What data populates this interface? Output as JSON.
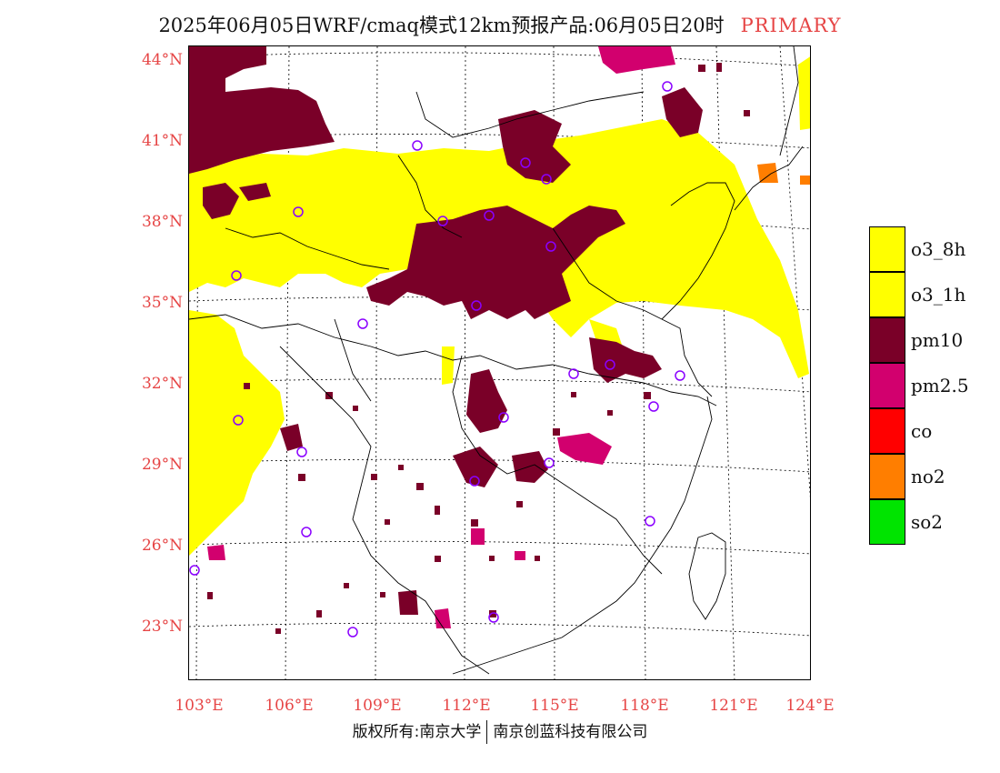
{
  "title": {
    "main": "2025年06月05日WRF/cmaq模式12km预报产品:06月05日20时",
    "tag": "PRIMARY",
    "tag_color": "#e64545"
  },
  "axes": {
    "latitude_labels": [
      "44°N",
      "41°N",
      "38°N",
      "35°N",
      "32°N",
      "29°N",
      "26°N",
      "23°N"
    ],
    "longitude_labels": [
      "103°E",
      "106°E",
      "109°E",
      "112°E",
      "115°E",
      "118°E",
      "121°E",
      "124°E"
    ],
    "label_color": "#e64545"
  },
  "legend": {
    "items": [
      {
        "label": "o3_8h",
        "color": "#ffff00"
      },
      {
        "label": "o3_1h",
        "color": "#ffff00"
      },
      {
        "label": "pm10",
        "color": "#7a0028"
      },
      {
        "label": "pm2.5",
        "color": "#d2006e"
      },
      {
        "label": "co",
        "color": "#ff0000"
      },
      {
        "label": "no2",
        "color": "#ff7e00"
      },
      {
        "label": "so2",
        "color": "#00e400"
      }
    ]
  },
  "footer": {
    "left": "版权所有:南京大学",
    "right": "南京创蓝科技有限公司"
  },
  "map": {
    "layers": [
      "o3_8h",
      "pm10",
      "pm2.5",
      "no2"
    ],
    "station_marker_color": "#8a00ff",
    "boundary_color": "#000000"
  }
}
